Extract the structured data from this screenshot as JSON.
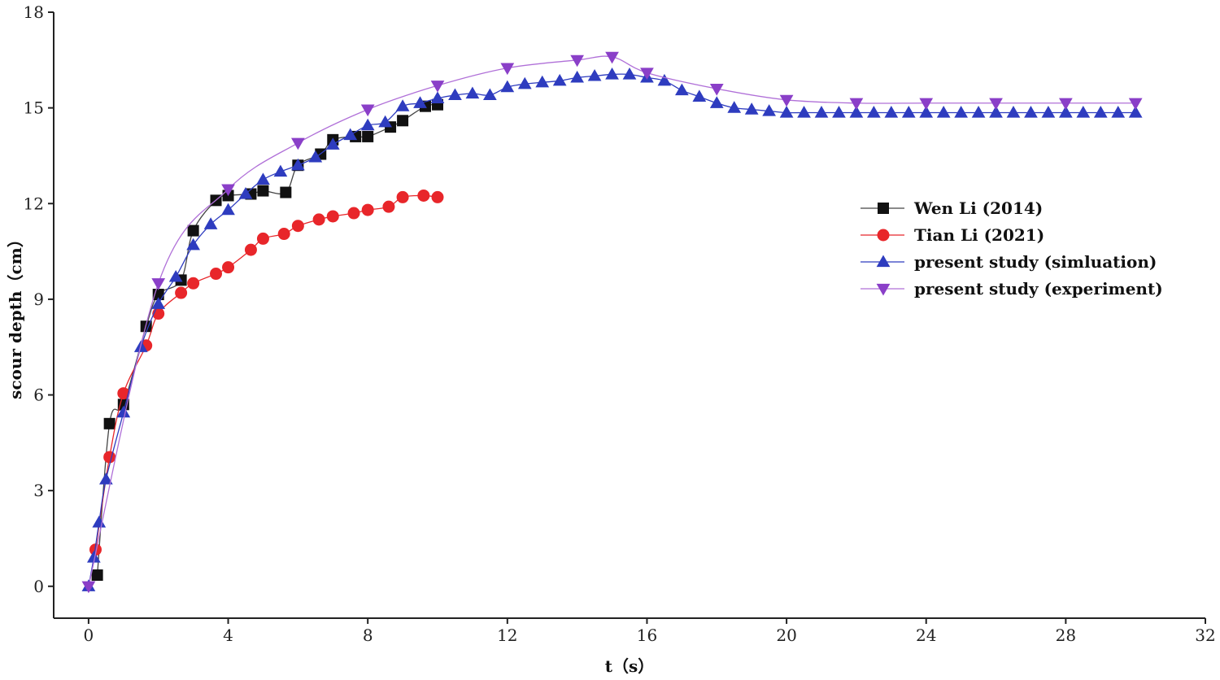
{
  "chart_data": {
    "type": "line",
    "title": "",
    "xlabel": "t（s）",
    "ylabel": "scour depth（cm）",
    "xlim": [
      -1,
      32
    ],
    "ylim": [
      -1,
      18
    ],
    "xticks": [
      0,
      4,
      8,
      12,
      16,
      20,
      24,
      28,
      32
    ],
    "yticks": [
      0,
      3,
      6,
      9,
      12,
      15,
      18
    ],
    "xtick_labels": [
      "0",
      "4",
      "8",
      "12",
      "16",
      "20",
      "24",
      "28",
      "32"
    ],
    "ytick_labels": [
      "0",
      "3",
      "6",
      "9",
      "12",
      "15",
      "18"
    ],
    "grid": false,
    "legend_position": "center-right",
    "series": [
      {
        "name": "Wen Li (2014)",
        "marker": "square",
        "color": "#111111",
        "line_color": "#444444",
        "x": [
          0.25,
          0.6,
          1.0,
          1.65,
          2.0,
          2.65,
          3.0,
          3.65,
          4.0,
          4.65,
          5.0,
          5.65,
          6.0,
          6.65,
          7.0,
          7.65,
          8.0,
          8.65,
          9.0,
          9.65,
          10.0
        ],
        "y": [
          0.35,
          5.1,
          5.7,
          8.15,
          9.15,
          9.6,
          11.15,
          12.1,
          12.25,
          12.3,
          12.4,
          12.35,
          13.2,
          13.55,
          14.0,
          14.1,
          14.1,
          14.4,
          14.6,
          15.05,
          15.1
        ]
      },
      {
        "name": "Tian Li (2021)",
        "marker": "circle",
        "color": "#e8262a",
        "line_color": "#e8262a",
        "x": [
          0.2,
          0.6,
          1.0,
          1.65,
          2.0,
          2.65,
          3.0,
          3.65,
          4.0,
          4.65,
          5.0,
          5.6,
          6.0,
          6.6,
          7.0,
          7.6,
          8.0,
          8.6,
          9.0,
          9.6,
          10.0
        ],
        "y": [
          1.15,
          4.05,
          6.05,
          7.55,
          8.55,
          9.2,
          9.5,
          9.8,
          10.0,
          10.55,
          10.9,
          11.05,
          11.3,
          11.5,
          11.6,
          11.7,
          11.8,
          11.9,
          12.2,
          12.25,
          12.2
        ]
      },
      {
        "name": "present study (simluation)",
        "marker": "triangle-up",
        "color": "#2e3cbf",
        "line_color": "#2e3cbf",
        "x": [
          0,
          0.15,
          0.3,
          0.5,
          1.0,
          1.5,
          2.0,
          2.5,
          3.0,
          3.5,
          4.0,
          4.5,
          5.0,
          5.5,
          6.0,
          6.5,
          7.0,
          7.5,
          8.0,
          8.5,
          9.0,
          9.5,
          10.0,
          10.5,
          11.0,
          11.5,
          12.0,
          12.5,
          13.0,
          13.5,
          14.0,
          14.5,
          15.0,
          15.5,
          16.0,
          16.5,
          17.0,
          17.5,
          18.0,
          18.5,
          19.0,
          19.5,
          20.0,
          20.5,
          21.0,
          21.5,
          22.0,
          22.5,
          23.0,
          23.5,
          24.0,
          24.5,
          25.0,
          25.5,
          26.0,
          26.5,
          27.0,
          27.5,
          28.0,
          28.5,
          29.0,
          29.5,
          30.0
        ],
        "y": [
          0.0,
          0.9,
          2.0,
          3.35,
          5.45,
          7.5,
          8.85,
          9.7,
          10.7,
          11.35,
          11.8,
          12.3,
          12.75,
          13.0,
          13.2,
          13.45,
          13.85,
          14.15,
          14.45,
          14.55,
          15.05,
          15.15,
          15.3,
          15.4,
          15.45,
          15.4,
          15.65,
          15.75,
          15.8,
          15.85,
          15.95,
          16.0,
          16.05,
          16.05,
          15.95,
          15.85,
          15.55,
          15.35,
          15.15,
          15.0,
          14.95,
          14.9,
          14.85,
          14.85,
          14.85,
          14.85,
          14.85,
          14.85,
          14.85,
          14.85,
          14.85,
          14.85,
          14.85,
          14.85,
          14.85,
          14.85,
          14.85,
          14.85,
          14.85,
          14.85,
          14.85,
          14.85,
          14.85
        ]
      },
      {
        "name": "present study (experiment)",
        "marker": "triangle-down",
        "color": "#8a3fc8",
        "line_color": "#b070d8",
        "x": [
          0,
          2,
          4,
          6,
          8,
          10,
          12,
          14,
          15,
          16,
          18,
          20,
          22,
          24,
          26,
          28,
          30
        ],
        "y": [
          0.0,
          9.5,
          12.45,
          13.9,
          14.95,
          15.7,
          16.25,
          16.5,
          16.6,
          16.1,
          15.6,
          15.25,
          15.15,
          15.15,
          15.15,
          15.15,
          15.15
        ]
      }
    ]
  }
}
